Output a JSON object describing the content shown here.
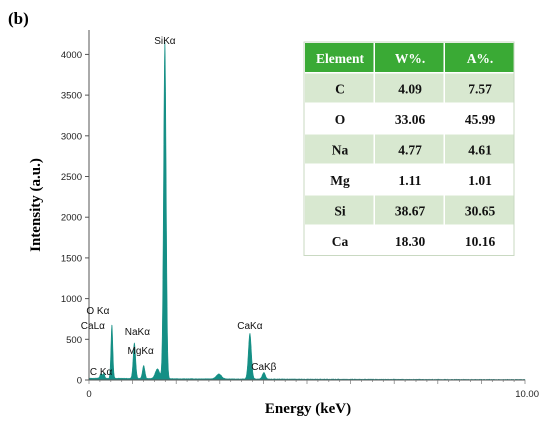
{
  "panel_label": "(b)",
  "chart_data": {
    "type": "line",
    "title": "",
    "xlabel": "Energy (keV)",
    "ylabel": "Intensity (a.u.)",
    "xlim": [
      0,
      10
    ],
    "ylim": [
      0,
      4300
    ],
    "x_tick_labels": [
      {
        "value": 0,
        "label": "0"
      },
      {
        "value": 10,
        "label": "10.00"
      }
    ],
    "y_ticks": [
      0,
      500,
      1000,
      1500,
      2000,
      2500,
      3000,
      3500,
      4000
    ],
    "grid": false,
    "fill_color": "#148f85",
    "background": 20,
    "peaks": [
      {
        "label": "C Kα",
        "energy": 0.277,
        "height": 60,
        "width": 0.025
      },
      {
        "label": "O Kα",
        "energy": 0.525,
        "height": 660,
        "width": 0.022
      },
      {
        "label": "CaLα",
        "energy": 0.341,
        "height": 60,
        "width": 0.02
      },
      {
        "label": "NaKα",
        "energy": 1.041,
        "height": 440,
        "width": 0.028
      },
      {
        "label": "MgKα",
        "energy": 1.254,
        "height": 160,
        "width": 0.028
      },
      {
        "label": "SiKα",
        "energy": 1.74,
        "height": 4150,
        "width": 0.03
      },
      {
        "label": "CaKα",
        "energy": 3.69,
        "height": 560,
        "width": 0.035
      },
      {
        "label": "CaKβ",
        "energy": 4.01,
        "height": 80,
        "width": 0.035
      }
    ],
    "extra_bumps": [
      {
        "energy": 1.57,
        "height": 120,
        "width": 0.05
      },
      {
        "energy": 2.98,
        "height": 60,
        "width": 0.06
      }
    ]
  },
  "table": {
    "headers": [
      "Element",
      "W%.",
      "A%."
    ],
    "rows": [
      [
        "C",
        "4.09",
        "7.57"
      ],
      [
        "O",
        "33.06",
        "45.99"
      ],
      [
        "Na",
        "4.77",
        "4.61"
      ],
      [
        "Mg",
        "1.11",
        "1.01"
      ],
      [
        "Si",
        "38.67",
        "30.65"
      ],
      [
        "Ca",
        "18.30",
        "10.16"
      ]
    ],
    "header_color": "#3aaa35",
    "row_colors": [
      "#d8e8d0",
      "#ffffff"
    ]
  }
}
